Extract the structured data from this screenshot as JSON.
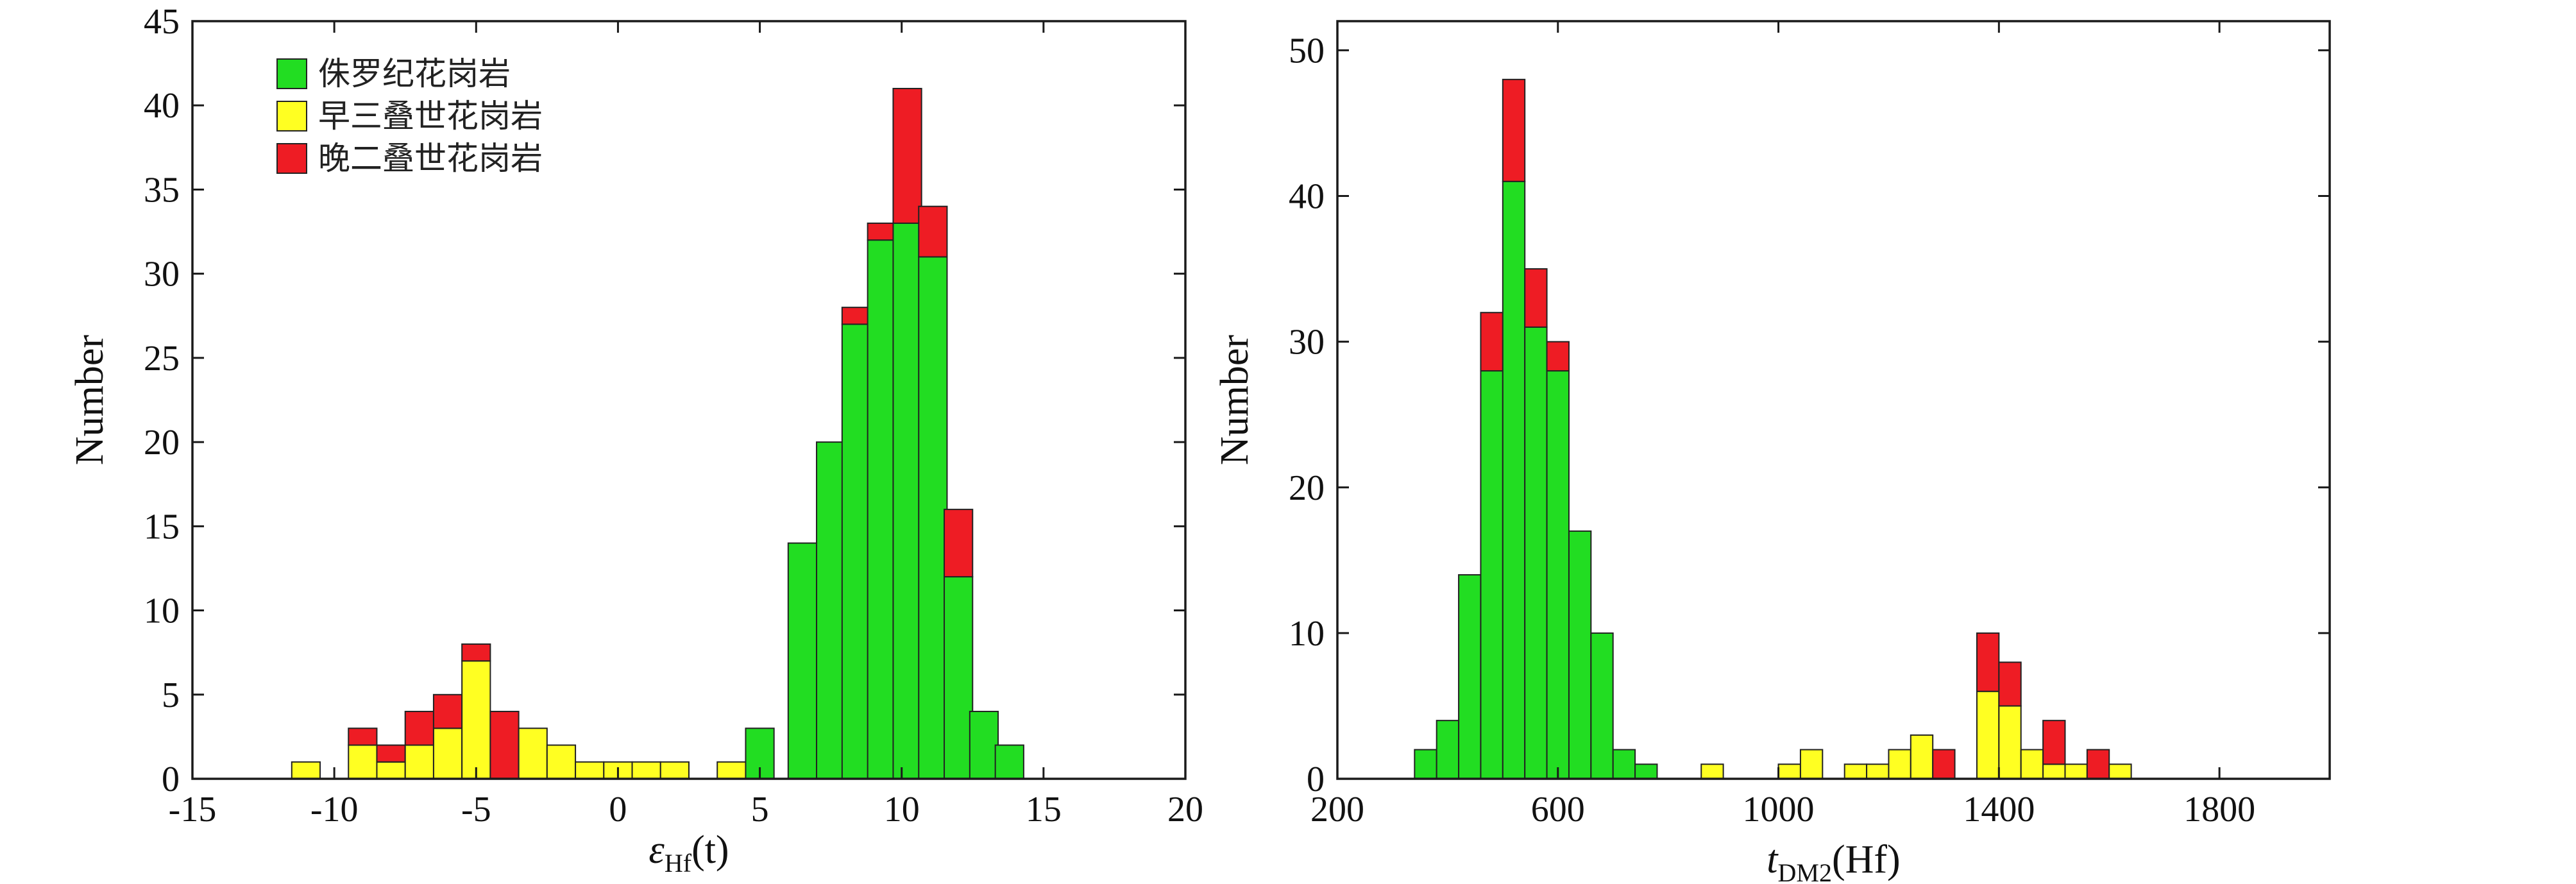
{
  "colors": {
    "jurassic": "#22dd22",
    "early_triassic": "#ffff22",
    "late_permian": "#ee1c24"
  },
  "chart_data": [
    {
      "type": "bar",
      "stacked": true,
      "ylabel": "Number",
      "xlabel_main": "ε",
      "xlabel_sub": "Hf",
      "xlabel_tail": "(t)",
      "xlim": [
        -15,
        20
      ],
      "ylim": [
        0,
        45
      ],
      "xticks": [
        -15,
        -10,
        -5,
        0,
        5,
        10,
        15,
        20
      ],
      "yticks": [
        0,
        5,
        10,
        15,
        20,
        25,
        30,
        35,
        40,
        45
      ],
      "bin_width": 1,
      "legend": {
        "placement": "top-left",
        "entries": [
          {
            "key": "jurassic",
            "label": "侏罗纪花岗岩"
          },
          {
            "key": "early_triassic",
            "label": "早三叠世花岗岩"
          },
          {
            "key": "late_permian",
            "label": "晚二叠世花岗岩"
          }
        ]
      },
      "bins": [
        {
          "x0": -11.5,
          "jurassic": 0,
          "early_triassic": 1,
          "late_permian": 0
        },
        {
          "x0": -9.5,
          "jurassic": 0,
          "early_triassic": 2,
          "late_permian": 1
        },
        {
          "x0": -8.5,
          "jurassic": 0,
          "early_triassic": 1,
          "late_permian": 1
        },
        {
          "x0": -7.5,
          "jurassic": 0,
          "early_triassic": 2,
          "late_permian": 2
        },
        {
          "x0": -6.5,
          "jurassic": 0,
          "early_triassic": 3,
          "late_permian": 2
        },
        {
          "x0": -5.5,
          "jurassic": 0,
          "early_triassic": 7,
          "late_permian": 1
        },
        {
          "x0": -4.5,
          "jurassic": 0,
          "early_triassic": 0,
          "late_permian": 4
        },
        {
          "x0": -3.5,
          "jurassic": 0,
          "early_triassic": 3,
          "late_permian": 0
        },
        {
          "x0": -2.5,
          "jurassic": 0,
          "early_triassic": 2,
          "late_permian": 0
        },
        {
          "x0": -1.5,
          "jurassic": 0,
          "early_triassic": 1,
          "late_permian": 0
        },
        {
          "x0": -0.5,
          "jurassic": 0,
          "early_triassic": 1,
          "late_permian": 0
        },
        {
          "x0": 0.5,
          "jurassic": 0,
          "early_triassic": 1,
          "late_permian": 0
        },
        {
          "x0": 1.5,
          "jurassic": 0,
          "early_triassic": 1,
          "late_permian": 0
        },
        {
          "x0": 3.5,
          "jurassic": 0,
          "early_triassic": 1,
          "late_permian": 0
        },
        {
          "x0": 4.5,
          "jurassic": 3,
          "early_triassic": 0,
          "late_permian": 0
        },
        {
          "x0": 6.0,
          "jurassic": 14,
          "early_triassic": 0,
          "late_permian": 0
        },
        {
          "x0": 7.0,
          "jurassic": 20,
          "early_triassic": 0,
          "late_permian": 0
        },
        {
          "x0": 7.9,
          "jurassic": 27,
          "early_triassic": 0,
          "late_permian": 1
        },
        {
          "x0": 8.8,
          "jurassic": 32,
          "early_triassic": 0,
          "late_permian": 1
        },
        {
          "x0": 9.7,
          "jurassic": 33,
          "early_triassic": 0,
          "late_permian": 8
        },
        {
          "x0": 10.6,
          "jurassic": 31,
          "early_triassic": 0,
          "late_permian": 3
        },
        {
          "x0": 11.5,
          "jurassic": 12,
          "early_triassic": 0,
          "late_permian": 4
        },
        {
          "x0": 12.4,
          "jurassic": 4,
          "early_triassic": 0,
          "late_permian": 0
        },
        {
          "x0": 13.3,
          "jurassic": 2,
          "early_triassic": 0,
          "late_permian": 0
        }
      ]
    },
    {
      "type": "bar",
      "stacked": true,
      "ylabel": "Number",
      "xlabel_main": "t",
      "xlabel_sub": "DM2",
      "xlabel_tail": "(Hf)",
      "xlim": [
        200,
        2000
      ],
      "ylim": [
        0,
        52
      ],
      "xticks": [
        200,
        600,
        1000,
        1400,
        1800
      ],
      "yticks": [
        0,
        10,
        20,
        30,
        40,
        50
      ],
      "bin_width": 40,
      "bins": [
        {
          "x0": 340,
          "jurassic": 2,
          "early_triassic": 0,
          "late_permian": 0
        },
        {
          "x0": 380,
          "jurassic": 4,
          "early_triassic": 0,
          "late_permian": 0
        },
        {
          "x0": 420,
          "jurassic": 14,
          "early_triassic": 0,
          "late_permian": 0
        },
        {
          "x0": 460,
          "jurassic": 28,
          "early_triassic": 0,
          "late_permian": 4
        },
        {
          "x0": 500,
          "jurassic": 41,
          "early_triassic": 0,
          "late_permian": 7
        },
        {
          "x0": 540,
          "jurassic": 31,
          "early_triassic": 0,
          "late_permian": 4
        },
        {
          "x0": 580,
          "jurassic": 28,
          "early_triassic": 0,
          "late_permian": 2
        },
        {
          "x0": 620,
          "jurassic": 17,
          "early_triassic": 0,
          "late_permian": 0
        },
        {
          "x0": 660,
          "jurassic": 10,
          "early_triassic": 0,
          "late_permian": 0
        },
        {
          "x0": 700,
          "jurassic": 2,
          "early_triassic": 0,
          "late_permian": 0
        },
        {
          "x0": 740,
          "jurassic": 1,
          "early_triassic": 0,
          "late_permian": 0
        },
        {
          "x0": 860,
          "jurassic": 0,
          "early_triassic": 1,
          "late_permian": 0
        },
        {
          "x0": 1000,
          "jurassic": 0,
          "early_triassic": 1,
          "late_permian": 0
        },
        {
          "x0": 1040,
          "jurassic": 0,
          "early_triassic": 2,
          "late_permian": 0
        },
        {
          "x0": 1120,
          "jurassic": 0,
          "early_triassic": 1,
          "late_permian": 0
        },
        {
          "x0": 1160,
          "jurassic": 0,
          "early_triassic": 1,
          "late_permian": 0
        },
        {
          "x0": 1200,
          "jurassic": 0,
          "early_triassic": 2,
          "late_permian": 0
        },
        {
          "x0": 1240,
          "jurassic": 0,
          "early_triassic": 3,
          "late_permian": 0
        },
        {
          "x0": 1280,
          "jurassic": 0,
          "early_triassic": 0,
          "late_permian": 2
        },
        {
          "x0": 1360,
          "jurassic": 0,
          "early_triassic": 6,
          "late_permian": 4
        },
        {
          "x0": 1400,
          "jurassic": 0,
          "early_triassic": 5,
          "late_permian": 3
        },
        {
          "x0": 1440,
          "jurassic": 0,
          "early_triassic": 2,
          "late_permian": 0
        },
        {
          "x0": 1480,
          "jurassic": 0,
          "early_triassic": 1,
          "late_permian": 3
        },
        {
          "x0": 1520,
          "jurassic": 0,
          "early_triassic": 1,
          "late_permian": 0
        },
        {
          "x0": 1560,
          "jurassic": 0,
          "early_triassic": 0,
          "late_permian": 2
        },
        {
          "x0": 1600,
          "jurassic": 0,
          "early_triassic": 1,
          "late_permian": 0
        }
      ]
    }
  ]
}
